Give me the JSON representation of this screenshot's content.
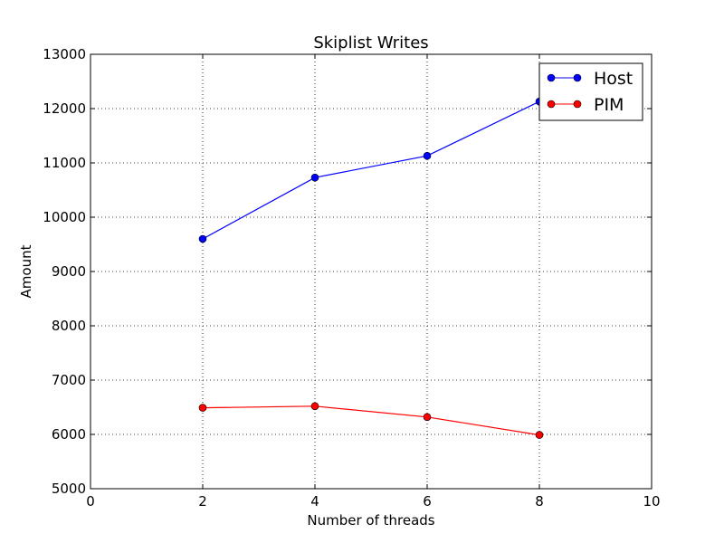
{
  "chart_data": {
    "type": "line",
    "title": "Skiplist Writes",
    "xlabel": "Number of threads",
    "ylabel": "Amount",
    "xlim": [
      0,
      10
    ],
    "ylim": [
      5000,
      13000
    ],
    "xticks": [
      0,
      2,
      4,
      6,
      8,
      10
    ],
    "yticks": [
      5000,
      6000,
      7000,
      8000,
      9000,
      10000,
      11000,
      12000,
      13000
    ],
    "grid": true,
    "legend_position": "top-right",
    "x": [
      2,
      4,
      6,
      8
    ],
    "series": [
      {
        "name": "Host",
        "color": "#0000ff",
        "marker": "circle",
        "values": [
          9600,
          10730,
          11130,
          12130
        ]
      },
      {
        "name": "PIM",
        "color": "#ff0000",
        "marker": "circle",
        "values": [
          6490,
          6520,
          6320,
          5990
        ]
      }
    ]
  }
}
